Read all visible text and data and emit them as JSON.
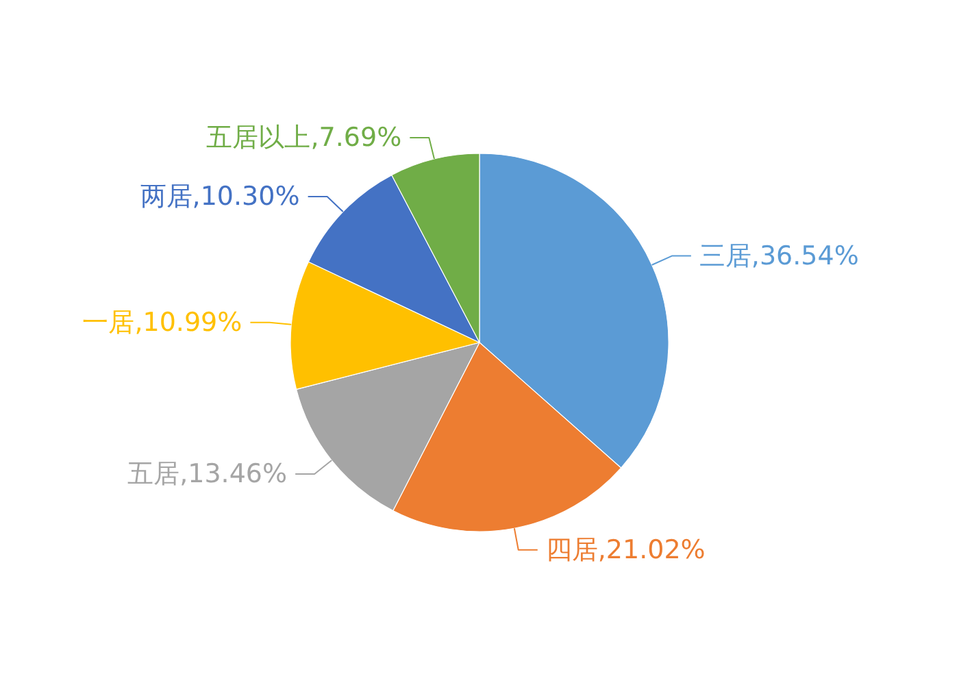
{
  "chart_data": {
    "type": "pie",
    "categories": [
      "三居",
      "四居",
      "五居",
      "一居",
      "两居",
      "五居以上"
    ],
    "values": [
      36.54,
      21.02,
      13.46,
      10.99,
      10.3,
      7.69
    ],
    "colors": [
      "#5b9bd5",
      "#ed7d31",
      "#a5a5a5",
      "#ffc000",
      "#4472c4",
      "#70ad47"
    ],
    "value_labels": [
      "36.54%",
      "21.02%",
      "13.46%",
      "10.99%",
      "10.30%",
      "7.69%"
    ]
  }
}
